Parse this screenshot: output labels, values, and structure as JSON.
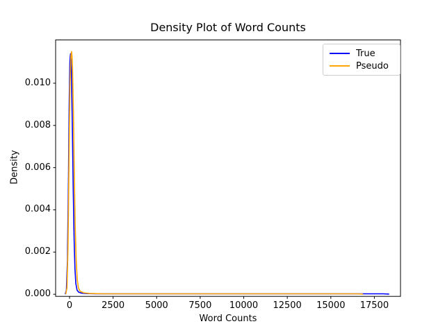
{
  "window": {
    "background": "#ffffff"
  },
  "chart_data": {
    "type": "line",
    "title": "Density Plot of Word Counts",
    "xlabel": "Word Counts",
    "ylabel": "Density",
    "xlim": [
      -800,
      19000
    ],
    "ylim": [
      -0.0001,
      0.01205
    ],
    "xticks": [
      0,
      2500,
      5000,
      7500,
      10000,
      12500,
      15000,
      17500
    ],
    "xtick_labels": [
      "0",
      "2500",
      "5000",
      "7500",
      "10000",
      "12500",
      "15000",
      "17500"
    ],
    "yticks": [
      0.0,
      0.002,
      0.004,
      0.006,
      0.008,
      0.01
    ],
    "ytick_labels": [
      "0.000",
      "0.002",
      "0.004",
      "0.006",
      "0.008",
      "0.010"
    ],
    "grid": false,
    "axis_color": "#000000",
    "legend": {
      "position": "upper right",
      "entries": [
        {
          "label": "True",
          "color": "#0000ff"
        },
        {
          "label": "Pseudo",
          "color": "#ffa500"
        }
      ]
    },
    "series": [
      {
        "name": "True",
        "color": "#0000ff",
        "points": [
          [
            -250,
            0
          ],
          [
            -180,
            0.0002
          ],
          [
            -120,
            0.0016
          ],
          [
            -60,
            0.0055
          ],
          [
            -20,
            0.009
          ],
          [
            20,
            0.011
          ],
          [
            40,
            0.01125
          ],
          [
            60,
            0.0114
          ],
          [
            85,
            0.0111
          ],
          [
            110,
            0.0104
          ],
          [
            160,
            0.008
          ],
          [
            210,
            0.005
          ],
          [
            260,
            0.0026
          ],
          [
            310,
            0.0012
          ],
          [
            360,
            0.0005
          ],
          [
            430,
            0.0002
          ],
          [
            520,
            0.0001
          ],
          [
            700,
            5e-05
          ],
          [
            1000,
            3e-05
          ],
          [
            1500,
            2e-05
          ],
          [
            2500,
            2e-05
          ],
          [
            5000,
            2e-05
          ],
          [
            7500,
            2e-05
          ],
          [
            10000,
            2e-05
          ],
          [
            12500,
            2e-05
          ],
          [
            15000,
            2e-05
          ],
          [
            17000,
            2e-05
          ],
          [
            18000,
            2e-05
          ],
          [
            18350,
            1e-05
          ]
        ]
      },
      {
        "name": "Pseudo",
        "color": "#ffa500",
        "points": [
          [
            -220,
            0
          ],
          [
            -150,
            0.0003
          ],
          [
            -90,
            0.0022
          ],
          [
            -30,
            0.0065
          ],
          [
            20,
            0.0098
          ],
          [
            70,
            0.0112
          ],
          [
            95,
            0.0114
          ],
          [
            120,
            0.0115
          ],
          [
            145,
            0.0112
          ],
          [
            170,
            0.0107
          ],
          [
            220,
            0.0086
          ],
          [
            270,
            0.0058
          ],
          [
            320,
            0.0033
          ],
          [
            380,
            0.0016
          ],
          [
            440,
            0.0007
          ],
          [
            510,
            0.0003
          ],
          [
            600,
            0.00015
          ],
          [
            800,
            7e-05
          ],
          [
            1100,
            4e-05
          ],
          [
            2000,
            2e-05
          ],
          [
            3000,
            2e-05
          ],
          [
            5000,
            2e-05
          ],
          [
            7500,
            2e-05
          ],
          [
            10000,
            2e-05
          ],
          [
            12500,
            2e-05
          ],
          [
            15000,
            2e-05
          ],
          [
            16500,
            2e-05
          ],
          [
            16850,
            1e-05
          ]
        ]
      }
    ]
  }
}
